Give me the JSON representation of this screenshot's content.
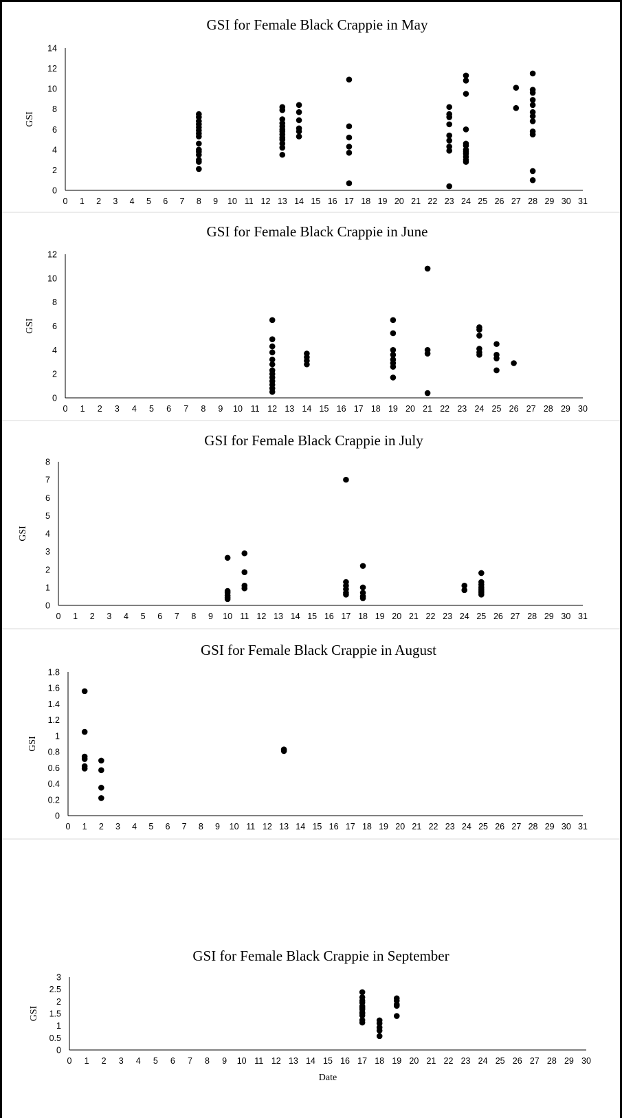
{
  "chart_data": [
    {
      "type": "scatter",
      "title": "GSI for Female Black Crappie in May",
      "xlabel": "",
      "ylabel": "GSI",
      "xlim": [
        0,
        31
      ],
      "ylim": [
        0,
        14
      ],
      "yticks": [
        0,
        2,
        4,
        6,
        8,
        10,
        12,
        14
      ],
      "grid": false,
      "points": [
        [
          8,
          7.5
        ],
        [
          8,
          7.2
        ],
        [
          8,
          6.8
        ],
        [
          8,
          6.5
        ],
        [
          8,
          6.2
        ],
        [
          8,
          5.9
        ],
        [
          8,
          5.6
        ],
        [
          8,
          5.3
        ],
        [
          8,
          4.6
        ],
        [
          8,
          4.0
        ],
        [
          8,
          3.8
        ],
        [
          8,
          3.5
        ],
        [
          8,
          3.0
        ],
        [
          8,
          2.8
        ],
        [
          8,
          2.1
        ],
        [
          13,
          8.2
        ],
        [
          13,
          7.9
        ],
        [
          13,
          7.0
        ],
        [
          13,
          6.6
        ],
        [
          13,
          6.3
        ],
        [
          13,
          6.0
        ],
        [
          13,
          5.8
        ],
        [
          13,
          5.5
        ],
        [
          13,
          5.2
        ],
        [
          13,
          5.0
        ],
        [
          13,
          4.6
        ],
        [
          13,
          4.2
        ],
        [
          13,
          3.5
        ],
        [
          14,
          8.4
        ],
        [
          14,
          7.7
        ],
        [
          14,
          6.9
        ],
        [
          14,
          6.1
        ],
        [
          14,
          5.8
        ],
        [
          14,
          5.3
        ],
        [
          17,
          10.9
        ],
        [
          17,
          6.3
        ],
        [
          17,
          5.2
        ],
        [
          17,
          4.3
        ],
        [
          17,
          3.7
        ],
        [
          17,
          0.7
        ],
        [
          23,
          8.2
        ],
        [
          23,
          7.5
        ],
        [
          23,
          7.2
        ],
        [
          23,
          6.5
        ],
        [
          23,
          5.4
        ],
        [
          23,
          4.9
        ],
        [
          23,
          4.3
        ],
        [
          23,
          3.9
        ],
        [
          23,
          0.4
        ],
        [
          24,
          11.3
        ],
        [
          24,
          10.8
        ],
        [
          24,
          9.5
        ],
        [
          24,
          6.0
        ],
        [
          24,
          4.6
        ],
        [
          24,
          4.4
        ],
        [
          24,
          4.0
        ],
        [
          24,
          3.8
        ],
        [
          24,
          3.6
        ],
        [
          24,
          3.3
        ],
        [
          24,
          3.0
        ],
        [
          24,
          2.8
        ],
        [
          27,
          10.1
        ],
        [
          27,
          8.1
        ],
        [
          28,
          11.5
        ],
        [
          28,
          9.9
        ],
        [
          28,
          9.6
        ],
        [
          28,
          8.9
        ],
        [
          28,
          8.4
        ],
        [
          28,
          7.7
        ],
        [
          28,
          7.3
        ],
        [
          28,
          6.8
        ],
        [
          28,
          5.8
        ],
        [
          28,
          5.5
        ],
        [
          28,
          1.9
        ],
        [
          28,
          1.0
        ]
      ]
    },
    {
      "type": "scatter",
      "title": "GSI for Female Black Crappie in June",
      "xlabel": "",
      "ylabel": "GSI",
      "xlim": [
        0,
        30
      ],
      "ylim": [
        0,
        12
      ],
      "yticks": [
        0,
        2,
        4,
        6,
        8,
        10,
        12
      ],
      "grid": false,
      "points": [
        [
          12,
          6.5
        ],
        [
          12,
          4.9
        ],
        [
          12,
          4.3
        ],
        [
          12,
          3.8
        ],
        [
          12,
          3.2
        ],
        [
          12,
          2.8
        ],
        [
          12,
          2.3
        ],
        [
          12,
          2.0
        ],
        [
          12,
          1.7
        ],
        [
          12,
          1.4
        ],
        [
          12,
          1.1
        ],
        [
          12,
          0.8
        ],
        [
          12,
          0.5
        ],
        [
          14,
          3.7
        ],
        [
          14,
          3.4
        ],
        [
          14,
          3.1
        ],
        [
          14,
          2.8
        ],
        [
          19,
          6.5
        ],
        [
          19,
          5.4
        ],
        [
          19,
          4.0
        ],
        [
          19,
          3.6
        ],
        [
          19,
          3.2
        ],
        [
          19,
          2.9
        ],
        [
          19,
          2.6
        ],
        [
          19,
          1.7
        ],
        [
          21,
          10.8
        ],
        [
          21,
          4.0
        ],
        [
          21,
          3.7
        ],
        [
          21,
          0.4
        ],
        [
          24,
          5.9
        ],
        [
          24,
          5.7
        ],
        [
          24,
          5.2
        ],
        [
          24,
          4.1
        ],
        [
          24,
          3.8
        ],
        [
          24,
          3.6
        ],
        [
          25,
          4.5
        ],
        [
          25,
          3.6
        ],
        [
          25,
          3.3
        ],
        [
          25,
          2.3
        ],
        [
          26,
          2.9
        ]
      ]
    },
    {
      "type": "scatter",
      "title": "GSI for Female Black Crappie in July",
      "xlabel": "",
      "ylabel": "GSI",
      "xlim": [
        0,
        31
      ],
      "ylim": [
        0,
        8
      ],
      "yticks": [
        0,
        1,
        2,
        3,
        4,
        5,
        6,
        7,
        8
      ],
      "grid": false,
      "points": [
        [
          10,
          2.65
        ],
        [
          10,
          0.8
        ],
        [
          10,
          0.7
        ],
        [
          10,
          0.55
        ],
        [
          10,
          0.45
        ],
        [
          10,
          0.35
        ],
        [
          11,
          2.9
        ],
        [
          11,
          1.85
        ],
        [
          11,
          1.1
        ],
        [
          11,
          0.95
        ],
        [
          17,
          7.0
        ],
        [
          17,
          1.3
        ],
        [
          17,
          1.1
        ],
        [
          17,
          0.9
        ],
        [
          17,
          0.7
        ],
        [
          17,
          0.6
        ],
        [
          18,
          2.2
        ],
        [
          18,
          1.0
        ],
        [
          18,
          0.7
        ],
        [
          18,
          0.5
        ],
        [
          18,
          0.4
        ],
        [
          24,
          1.1
        ],
        [
          24,
          0.85
        ],
        [
          25,
          1.8
        ],
        [
          25,
          1.3
        ],
        [
          25,
          1.15
        ],
        [
          25,
          1.0
        ],
        [
          25,
          0.9
        ],
        [
          25,
          0.8
        ],
        [
          25,
          0.7
        ],
        [
          25,
          0.6
        ]
      ]
    },
    {
      "type": "scatter",
      "title": "GSI for Female Black Crappie in August",
      "xlabel": "",
      "ylabel": "GSI",
      "xlim": [
        0,
        31
      ],
      "ylim": [
        0,
        1.8
      ],
      "yticks": [
        0,
        0.2,
        0.4,
        0.6,
        0.8,
        1,
        1.2,
        1.4,
        1.6,
        1.8
      ],
      "grid": false,
      "points": [
        [
          1,
          1.56
        ],
        [
          1,
          1.05
        ],
        [
          1,
          0.74
        ],
        [
          1,
          0.71
        ],
        [
          1,
          0.62
        ],
        [
          1,
          0.59
        ],
        [
          2,
          0.69
        ],
        [
          2,
          0.57
        ],
        [
          2,
          0.35
        ],
        [
          2,
          0.22
        ],
        [
          13,
          0.83
        ],
        [
          13,
          0.81
        ]
      ]
    },
    {
      "type": "scatter",
      "title": "GSI for Female Black Crappie in September",
      "xlabel": "Date",
      "ylabel": "GSI",
      "xlim": [
        0,
        30
      ],
      "ylim": [
        0,
        3
      ],
      "yticks": [
        0,
        0.5,
        1,
        1.5,
        2,
        2.5,
        3
      ],
      "grid": false,
      "points": [
        [
          17,
          2.38
        ],
        [
          17,
          2.17
        ],
        [
          17,
          2.03
        ],
        [
          17,
          1.95
        ],
        [
          17,
          1.8
        ],
        [
          17,
          1.73
        ],
        [
          17,
          1.67
        ],
        [
          17,
          1.55
        ],
        [
          17,
          1.5
        ],
        [
          17,
          1.42
        ],
        [
          17,
          1.23
        ],
        [
          17,
          1.13
        ],
        [
          18,
          1.22
        ],
        [
          18,
          1.1
        ],
        [
          18,
          0.93
        ],
        [
          18,
          0.8
        ],
        [
          18,
          0.57
        ],
        [
          19,
          2.13
        ],
        [
          19,
          2.03
        ],
        [
          19,
          1.87
        ],
        [
          19,
          1.82
        ],
        [
          19,
          1.4
        ]
      ]
    }
  ]
}
